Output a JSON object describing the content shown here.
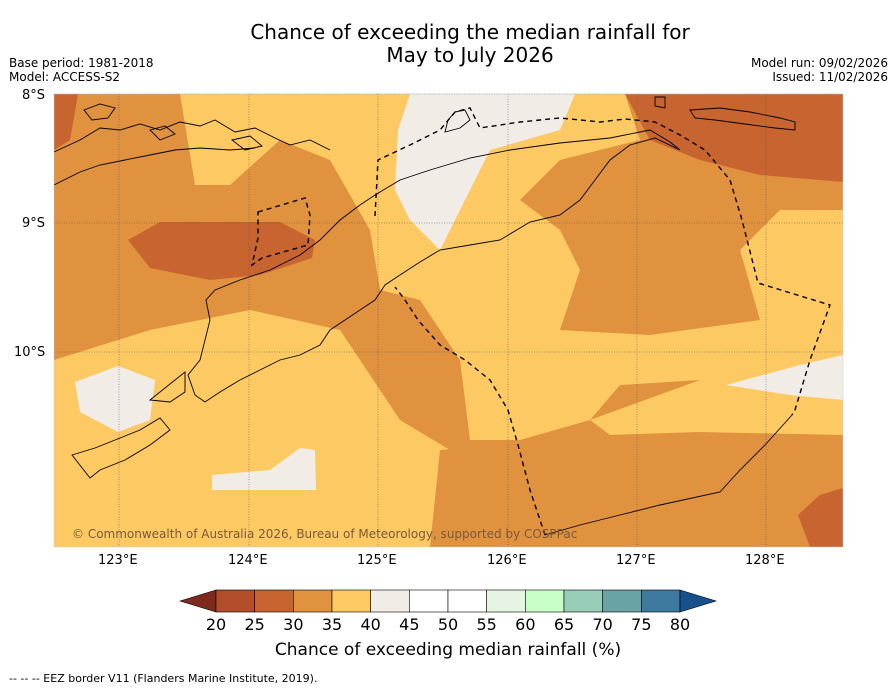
{
  "title_line1": "Chance of exceeding the median rainfall for",
  "title_line2": "May to July 2026",
  "base_period": "Base period: 1981-2018",
  "model": "Model: ACCESS-S2",
  "model_run": "Model run: 09/02/2026",
  "issued": "Issued: 11/02/2026",
  "lat_labels": [
    "8°S",
    "9°S",
    "10°S"
  ],
  "lon_labels": [
    "123°E",
    "124°E",
    "125°E",
    "126°E",
    "127°E",
    "128°E"
  ],
  "copyright": "© Commonwealth of Australia 2026, Bureau of Meteorology, supported by COSPPac",
  "colorbar": {
    "ticks": [
      "20",
      "25",
      "30",
      "35",
      "40",
      "45",
      "50",
      "55",
      "60",
      "65",
      "70",
      "75",
      "80"
    ],
    "colors": [
      "#7f2a1c",
      "#b24e2a",
      "#c8642f",
      "#e0923f",
      "#fdc963",
      "#f1ece6",
      "#ffffff",
      "#ffffff",
      "#e6f4e4",
      "#c8ffc8",
      "#98cdb8",
      "#6aa3a6",
      "#3e7aa0",
      "#17508a"
    ],
    "title": "Chance of exceeding median rainfall (%)"
  },
  "footer": "--  --  -- EEZ border V11 (Flanders Marine Institute, 2019).",
  "colors": {
    "c20": "#c8642f",
    "c30": "#e0923f",
    "c35": "#fdc963",
    "c40": "#f1ece6"
  }
}
